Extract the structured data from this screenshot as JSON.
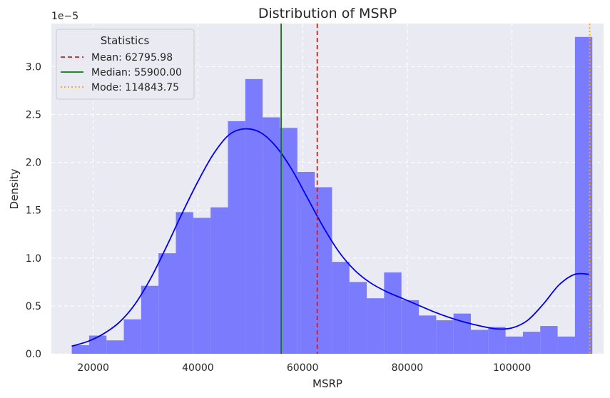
{
  "chart_data": {
    "type": "bar",
    "title": "Distribution of MSRP",
    "xlabel": "MSRP",
    "ylabel": "Density",
    "y_scale_label": "1e−5",
    "xlim": [
      12000,
      117500
    ],
    "ylim": [
      0,
      3.45
    ],
    "grid": true,
    "xticks": [
      20000,
      40000,
      60000,
      80000,
      100000
    ],
    "xtick_labels": [
      "20000",
      "40000",
      "60000",
      "80000",
      "100000"
    ],
    "yticks": [
      0.0,
      0.5,
      1.0,
      1.5,
      2.0,
      2.5,
      3.0
    ],
    "ytick_labels": [
      "0.0",
      "0.5",
      "1.0",
      "1.5",
      "2.0",
      "2.5",
      "3.0"
    ],
    "histogram": {
      "color": "#6b6bff",
      "bin_start": 15898,
      "bin_width": 3315,
      "density_x1e5": [
        0.09,
        0.19,
        0.14,
        0.36,
        0.71,
        1.05,
        1.48,
        1.42,
        1.53,
        2.43,
        2.87,
        2.47,
        2.36,
        1.9,
        1.74,
        0.96,
        0.75,
        0.58,
        0.85,
        0.56,
        0.4,
        0.35,
        0.42,
        0.25,
        0.28,
        0.18,
        0.23,
        0.29,
        0.18,
        3.31
      ]
    },
    "kde": {
      "color": "#0000ee",
      "x": [
        15898,
        19000,
        22000,
        25000,
        28000,
        31000,
        34000,
        37000,
        40000,
        43000,
        46000,
        49000,
        52000,
        55000,
        58000,
        61000,
        64000,
        67000,
        70000,
        73000,
        76000,
        79000,
        82000,
        85000,
        88000,
        91000,
        94000,
        97000,
        100000,
        103000,
        106000,
        109000,
        112000,
        114844
      ],
      "density_x1e5": [
        0.08,
        0.13,
        0.21,
        0.33,
        0.52,
        0.79,
        1.12,
        1.47,
        1.8,
        2.09,
        2.29,
        2.35,
        2.31,
        2.16,
        1.92,
        1.62,
        1.32,
        1.06,
        0.87,
        0.74,
        0.65,
        0.58,
        0.51,
        0.44,
        0.38,
        0.33,
        0.29,
        0.26,
        0.27,
        0.35,
        0.52,
        0.72,
        0.83,
        0.83
      ]
    },
    "stat_lines": [
      {
        "name": "Mean: 62795.98",
        "x": 62795.98,
        "color": "#e3170a",
        "style": "dashed"
      },
      {
        "name": "Median: 55900.00",
        "x": 55900.0,
        "color": "#0b7a0b",
        "style": "solid"
      },
      {
        "name": "Mode: 114843.75",
        "x": 114843.75,
        "color": "#ffa500",
        "style": "dotted"
      }
    ],
    "legend": {
      "title": "Statistics",
      "position": "top-left"
    }
  }
}
